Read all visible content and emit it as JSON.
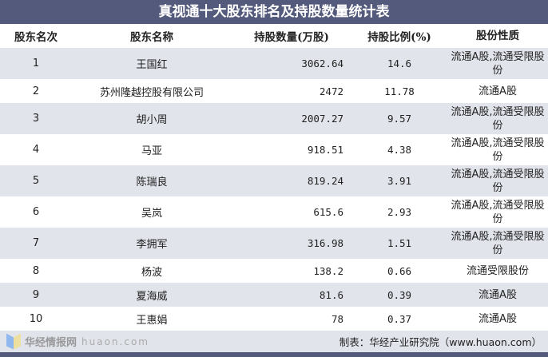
{
  "chart_data": {
    "type": "table",
    "title": "真视通十大股东排名及持股数量统计表",
    "columns": [
      "股东名次",
      "股东名称",
      "持股数量(万股)",
      "持股比例(%)",
      "股份性质"
    ],
    "rows": [
      [
        "1",
        "王国红",
        "3062.64",
        "14.6",
        "流通A股,流通受限股份"
      ],
      [
        "2",
        "苏州隆越控股有限公司",
        "2472",
        "11.78",
        "流通A股"
      ],
      [
        "3",
        "胡小周",
        "2007.27",
        "9.57",
        "流通A股,流通受限股份"
      ],
      [
        "4",
        "马亚",
        "918.51",
        "4.38",
        "流通A股,流通受限股份"
      ],
      [
        "5",
        "陈瑞良",
        "819.24",
        "3.91",
        "流通A股,流通受限股份"
      ],
      [
        "6",
        "吴岚",
        "615.6",
        "2.93",
        "流通A股,流通受限股份"
      ],
      [
        "7",
        "李拥军",
        "316.98",
        "1.51",
        "流通A股,流通受限股份"
      ],
      [
        "8",
        "杨波",
        "138.2",
        "0.66",
        "流通受限股份"
      ],
      [
        "9",
        "夏海威",
        "81.6",
        "0.39",
        "流通A股"
      ],
      [
        "10",
        "王惠娟",
        "78",
        "0.37",
        "流通A股"
      ]
    ],
    "source": "制表：华经产业研究院（www.huaon.com）"
  },
  "watermark": {
    "text": "华经情报网",
    "sub": "huaon.com"
  },
  "colors": {
    "header_bar": "#545a7b",
    "alt_row": "#e2e4eb"
  }
}
